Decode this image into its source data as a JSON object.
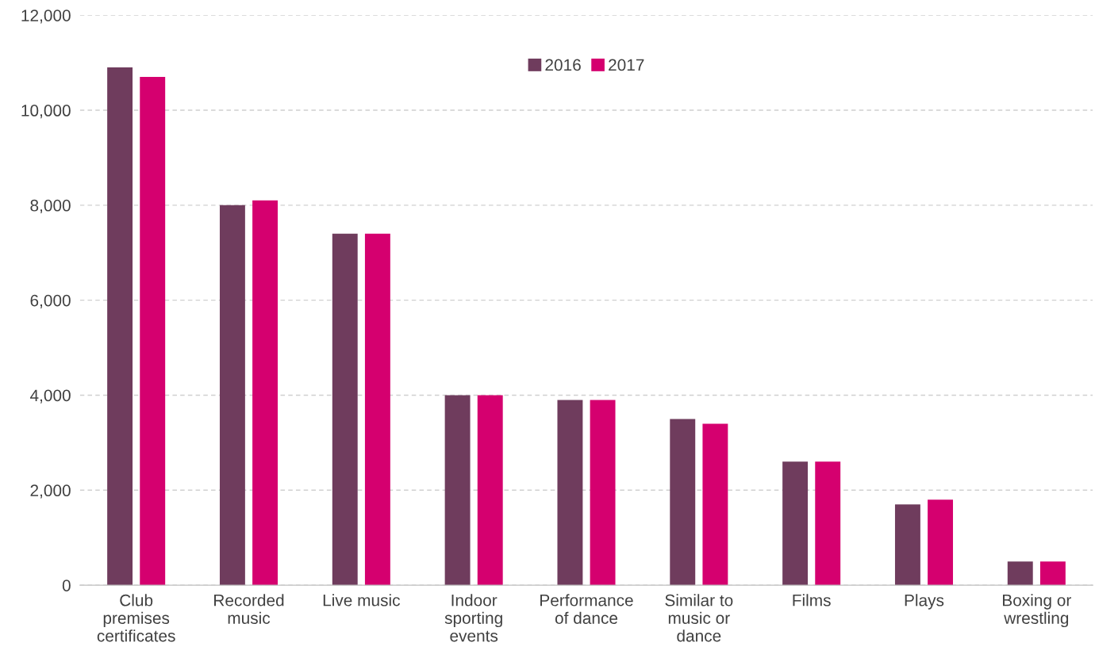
{
  "chart_data": {
    "type": "bar",
    "categories": [
      "Club premises certificates",
      "Recorded music",
      "Live music",
      "Indoor sporting events",
      "Performance of dance",
      "Similar to music or dance",
      "Films",
      "Plays",
      "Boxing or wrestling"
    ],
    "series": [
      {
        "name": "2016",
        "color": "#6f3c5d",
        "values": [
          10900,
          8000,
          7400,
          4000,
          3900,
          3500,
          2600,
          1700,
          500
        ]
      },
      {
        "name": "2017",
        "color": "#d5006f",
        "values": [
          10700,
          8100,
          7400,
          4000,
          3900,
          3400,
          2600,
          1800,
          500
        ]
      }
    ],
    "ylim": [
      0,
      12000
    ],
    "yticks": [
      {
        "value": 0,
        "label": "0"
      },
      {
        "value": 2000,
        "label": "2,000"
      },
      {
        "value": 4000,
        "label": "4,000"
      },
      {
        "value": 6000,
        "label": "6,000"
      },
      {
        "value": 8000,
        "label": "8,000"
      },
      {
        "value": 10000,
        "label": "10,000"
      },
      {
        "value": 12000,
        "label": "12,000"
      }
    ],
    "grid": "y",
    "legend": "top"
  }
}
